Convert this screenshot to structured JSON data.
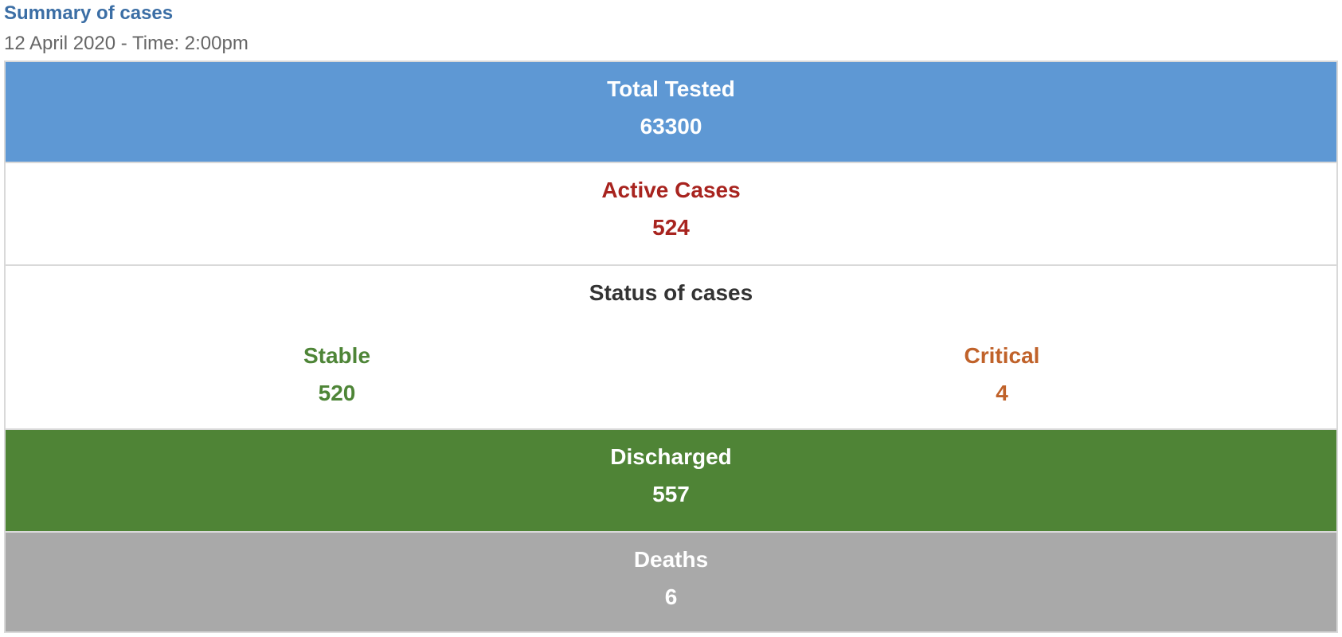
{
  "header": {
    "title": "Summary of cases",
    "subtitle": "12 April 2020 - Time: 2:00pm"
  },
  "rows": {
    "total_tested": {
      "label": "Total Tested",
      "value": "63300",
      "bg": "#5e98d4"
    },
    "active_cases": {
      "label": "Active Cases",
      "value": "524",
      "color": "#a8241f"
    },
    "status": {
      "label": "Status of cases",
      "stable": {
        "label": "Stable",
        "value": "520",
        "color": "#4e8537"
      },
      "critical": {
        "label": "Critical",
        "value": "4",
        "color": "#c0622a"
      }
    },
    "discharged": {
      "label": "Discharged",
      "value": "557",
      "bg": "#4f8436"
    },
    "deaths": {
      "label": "Deaths",
      "value": "6",
      "bg": "#a9a9a9"
    }
  }
}
